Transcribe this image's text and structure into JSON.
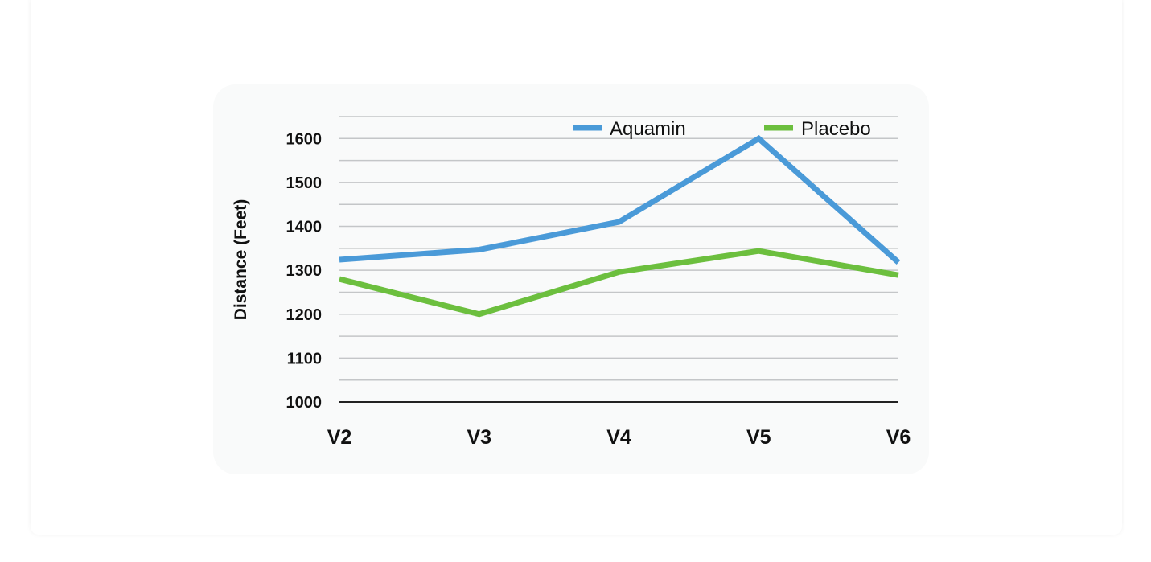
{
  "chart_data": {
    "type": "line",
    "title": "",
    "xlabel": "",
    "ylabel": "Distance (Feet)",
    "categories": [
      "V2",
      "V3",
      "V4",
      "V5",
      "V6"
    ],
    "ylim": [
      1000,
      1650
    ],
    "yticks": [
      1000,
      1100,
      1200,
      1300,
      1400,
      1500,
      1600
    ],
    "ytick_labels": [
      "1000",
      "1100",
      "1200",
      "1300",
      "1400",
      "1500",
      "1600"
    ],
    "grid": true,
    "legend": "top-right",
    "series": [
      {
        "name": "Aquamin",
        "color": "#4a9ad8",
        "values": [
          1324,
          1347,
          1410,
          1600,
          1318
        ]
      },
      {
        "name": "Placebo",
        "color": "#6cbf3e",
        "values": [
          1280,
          1200,
          1296,
          1344,
          1289
        ]
      }
    ]
  }
}
